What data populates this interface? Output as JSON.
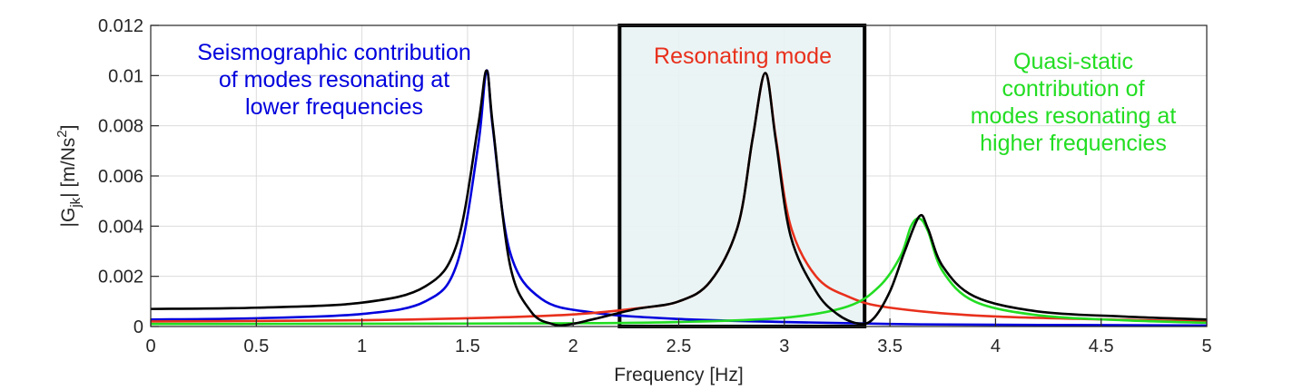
{
  "chart_data": {
    "type": "line",
    "xlabel": "Frequency [Hz]",
    "ylabel": {
      "main": "|G",
      "sub": "jk",
      "rest": "| [m/Ns",
      "sup": "2",
      "end": "]"
    },
    "xlim": [
      0,
      5
    ],
    "ylim": [
      0,
      0.012
    ],
    "x_ticks": [
      "0",
      "0.5",
      "1",
      "1.5",
      "2",
      "2.5",
      "3",
      "3.5",
      "4",
      "4.5",
      "5"
    ],
    "y_ticks": [
      "0",
      "0.002",
      "0.004",
      "0.006",
      "0.008",
      "0.01",
      "0.012"
    ],
    "grid": true,
    "highlight_region": {
      "x_start": 2.22,
      "x_end": 3.38
    },
    "series": [
      {
        "id": "lower",
        "color": "#0000dd",
        "points": [
          [
            0,
            0.00028
          ],
          [
            0.5,
            0.00033
          ],
          [
            1,
            0.0005
          ],
          [
            1.3,
            0.001
          ],
          [
            1.45,
            0.0025
          ],
          [
            1.55,
            0.0072
          ],
          [
            1.59,
            0.0102
          ],
          [
            1.62,
            0.0079
          ],
          [
            1.7,
            0.003
          ],
          [
            1.85,
            0.0011
          ],
          [
            2.1,
            0.00055
          ],
          [
            2.5,
            0.0003
          ],
          [
            3.0,
            0.00018
          ],
          [
            3.5,
            0.0001
          ],
          [
            4,
            7e-05
          ],
          [
            5,
            4e-05
          ]
        ]
      },
      {
        "id": "resonating",
        "color": "#e8301c",
        "points": [
          [
            0,
            0.0002
          ],
          [
            1,
            0.00025
          ],
          [
            1.6,
            0.00035
          ],
          [
            2,
            0.00048
          ],
          [
            2.3,
            0.00072
          ],
          [
            2.5,
            0.001
          ],
          [
            2.65,
            0.0018
          ],
          [
            2.78,
            0.004
          ],
          [
            2.85,
            0.0075
          ],
          [
            2.91,
            0.0101
          ],
          [
            2.96,
            0.0075
          ],
          [
            3.03,
            0.004
          ],
          [
            3.15,
            0.002
          ],
          [
            3.3,
            0.0012
          ],
          [
            3.5,
            0.00075
          ],
          [
            4,
            0.0004
          ],
          [
            5,
            0.0002
          ]
        ]
      },
      {
        "id": "higher",
        "color": "#22dd22",
        "points": [
          [
            0,
            0.0001
          ],
          [
            1,
            0.00011
          ],
          [
            2,
            0.00013
          ],
          [
            2.5,
            0.00018
          ],
          [
            3,
            0.00035
          ],
          [
            3.3,
            0.0008
          ],
          [
            3.45,
            0.0016
          ],
          [
            3.55,
            0.0028
          ],
          [
            3.6,
            0.004
          ],
          [
            3.64,
            0.0043
          ],
          [
            3.68,
            0.0038
          ],
          [
            3.75,
            0.0022
          ],
          [
            3.9,
            0.001
          ],
          [
            4.2,
            0.00045
          ],
          [
            4.6,
            0.00025
          ],
          [
            5,
            0.00015
          ]
        ]
      },
      {
        "id": "total",
        "color": "#000000",
        "points": [
          [
            0,
            0.0007
          ],
          [
            0.5,
            0.00075
          ],
          [
            1,
            0.00095
          ],
          [
            1.3,
            0.0016
          ],
          [
            1.45,
            0.0033
          ],
          [
            1.55,
            0.008
          ],
          [
            1.59,
            0.0102
          ],
          [
            1.62,
            0.008
          ],
          [
            1.7,
            0.0025
          ],
          [
            1.8,
            0.0006
          ],
          [
            1.9,
            0.0001
          ],
          [
            1.98,
            8e-05
          ],
          [
            2.1,
            0.0003
          ],
          [
            2.3,
            0.0007
          ],
          [
            2.5,
            0.001
          ],
          [
            2.65,
            0.0018
          ],
          [
            2.78,
            0.004
          ],
          [
            2.85,
            0.0075
          ],
          [
            2.91,
            0.0101
          ],
          [
            2.96,
            0.0074
          ],
          [
            3.03,
            0.0036
          ],
          [
            3.15,
            0.0014
          ],
          [
            3.25,
            0.0005
          ],
          [
            3.35,
            0.00012
          ],
          [
            3.42,
            0.0003
          ],
          [
            3.5,
            0.0014
          ],
          [
            3.57,
            0.003
          ],
          [
            3.64,
            0.0044
          ],
          [
            3.68,
            0.0039
          ],
          [
            3.75,
            0.0024
          ],
          [
            3.9,
            0.0012
          ],
          [
            4.2,
            0.0006
          ],
          [
            4.6,
            0.0004
          ],
          [
            5,
            0.00028
          ]
        ]
      }
    ],
    "annotations": [
      {
        "id": "lower",
        "color": "#0000dd",
        "lines": [
          "Seismographic contribution",
          "of modes resonating at",
          "lower frequencies"
        ]
      },
      {
        "id": "resonating",
        "color": "#e8301c",
        "lines": [
          "Resonating mode"
        ]
      },
      {
        "id": "higher",
        "color": "#22dd22",
        "lines": [
          "Quasi-static",
          "contribution of",
          "modes resonating at",
          "higher frequencies"
        ]
      }
    ]
  }
}
